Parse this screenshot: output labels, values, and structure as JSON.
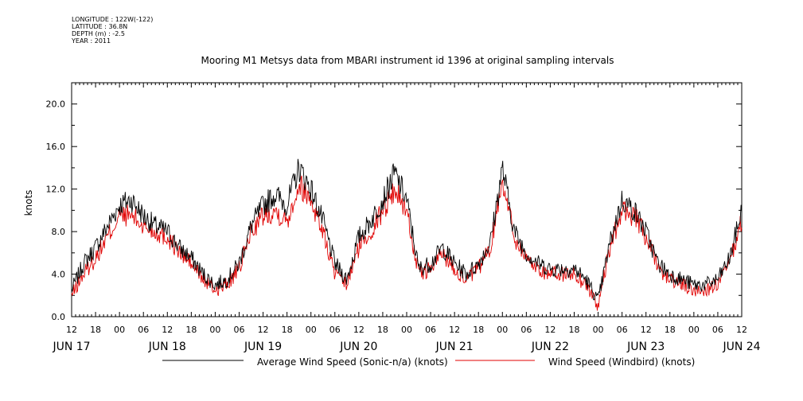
{
  "meta": {
    "longitude": "LONGITUDE : 122W(-122)",
    "latitude": "LATITUDE : 36.8N",
    "depth": "DEPTH (m) : -2.5",
    "year": "YEAR : 2011"
  },
  "chart_data": {
    "type": "line",
    "title": "Mooring M1 Metsys data from MBARI instrument id 1396 at original sampling intervals",
    "ylabel": "knots",
    "xlabel": "",
    "ylim": [
      0,
      22
    ],
    "y_ticks": [
      "0.0",
      "4.0",
      "8.0",
      "12.0",
      "16.0",
      "20.0"
    ],
    "x_range_hours": [
      0,
      168
    ],
    "hour_tick_labels": [
      "12",
      "18",
      "00",
      "06",
      "12",
      "18",
      "00",
      "06",
      "12",
      "18",
      "00",
      "06",
      "12",
      "18",
      "00",
      "06",
      "12",
      "18",
      "00",
      "06",
      "12",
      "18",
      "00",
      "06",
      "12",
      "18",
      "00",
      "06",
      "12"
    ],
    "day_labels": [
      "JUN 17",
      "JUN 18",
      "JUN 19",
      "JUN 20",
      "JUN 21",
      "JUN 22",
      "JUN 23",
      "JUN 24"
    ],
    "x_start": "2011-06-17 12:00",
    "grid": false,
    "legend_position": "bottom",
    "colors": {
      "sonic": "#000000",
      "windbird": "#e00000"
    },
    "series": [
      {
        "name": "Average Wind Speed (Sonic-n/a) (knots)",
        "key": "sonic",
        "x": [
          0,
          3,
          6,
          9,
          12,
          15,
          18,
          21,
          24,
          27,
          30,
          33,
          36,
          39,
          42,
          45,
          48,
          51,
          54,
          57,
          60,
          63,
          66,
          69,
          72,
          75,
          78,
          81,
          84,
          87,
          90,
          93,
          96,
          99,
          102,
          105,
          108,
          111,
          114,
          117,
          120,
          123,
          126,
          129,
          132,
          135,
          138,
          141,
          144,
          147,
          150,
          153,
          156,
          159,
          162,
          165,
          168
        ],
        "y": [
          2.5,
          5,
          6.5,
          8.5,
          10.5,
          11,
          9.5,
          8.5,
          8,
          6.5,
          5.5,
          4,
          3,
          3.5,
          5,
          8.5,
          10.5,
          11.5,
          10.5,
          14,
          12,
          9,
          5,
          3.5,
          7.5,
          9,
          11,
          13.5,
          11,
          4.5,
          5,
          6.5,
          5,
          4,
          5,
          7,
          14,
          8,
          6,
          5,
          4.5,
          4.5,
          4.5,
          3.5,
          1.5,
          7,
          11,
          10,
          8,
          5,
          4,
          3.5,
          3,
          3,
          3.5,
          5.5,
          10
        ]
      },
      {
        "name": "Wind Speed (Windbird) (knots)",
        "key": "windbird",
        "x": [
          0,
          3,
          6,
          9,
          12,
          15,
          18,
          21,
          24,
          27,
          30,
          33,
          36,
          39,
          42,
          45,
          48,
          51,
          54,
          57,
          60,
          63,
          66,
          69,
          72,
          75,
          78,
          81,
          84,
          87,
          90,
          93,
          96,
          99,
          102,
          105,
          108,
          111,
          114,
          117,
          120,
          123,
          126,
          129,
          132,
          135,
          138,
          141,
          144,
          147,
          150,
          153,
          156,
          159,
          162,
          165,
          168
        ],
        "y": [
          2,
          4,
          5.5,
          7.5,
          9.5,
          9.5,
          8.5,
          8,
          7.5,
          6,
          5,
          3.5,
          2.5,
          3,
          4.5,
          8,
          9.5,
          10,
          9,
          12.5,
          11,
          8,
          4,
          3,
          6.5,
          8,
          10,
          12,
          10,
          4,
          4.5,
          6,
          4.5,
          3.5,
          4.5,
          6.5,
          13,
          7.5,
          5.5,
          4.5,
          4,
          4,
          4,
          3,
          1,
          6.5,
          10,
          9.5,
          7.5,
          4.5,
          3.5,
          3,
          2.5,
          2.5,
          3,
          5,
          9
        ]
      }
    ]
  }
}
